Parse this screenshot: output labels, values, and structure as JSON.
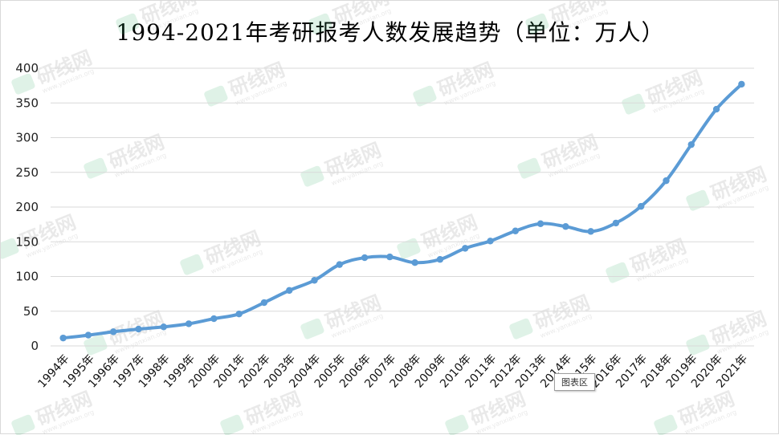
{
  "chart_data": {
    "type": "line",
    "title": "1994-2021年考研报考人数发展趋势（单位：万人）",
    "categories": [
      "1994年",
      "1995年",
      "1996年",
      "1997年",
      "1998年",
      "1999年",
      "2000年",
      "2001年",
      "2002年",
      "2003年",
      "2004年",
      "2005年",
      "2006年",
      "2007年",
      "2008年",
      "2009年",
      "2010年",
      "2011年",
      "2012年",
      "2013年",
      "2014年",
      "2015年",
      "2016年",
      "2017年",
      "2018年",
      "2019年",
      "2020年",
      "2021年"
    ],
    "series": [
      {
        "values": [
          11.4,
          15.5,
          20.4,
          24.2,
          27.4,
          31.9,
          39.2,
          46,
          62.4,
          79.9,
          94.5,
          117.2,
          127.1,
          128.2,
          120,
          124.6,
          140.6,
          151.1,
          165.6,
          176,
          172,
          164.9,
          177,
          201,
          238,
          290,
          341,
          377
        ]
      }
    ],
    "ylim": [
      0,
      400
    ],
    "yticks": [
      0,
      50,
      100,
      150,
      200,
      250,
      300,
      350,
      400
    ],
    "grid": true,
    "line_color": "#5b9bd5"
  },
  "ui": {
    "tooltip": "图表区",
    "watermark_text": "研线网",
    "watermark_url": "www.yanxian.org"
  }
}
